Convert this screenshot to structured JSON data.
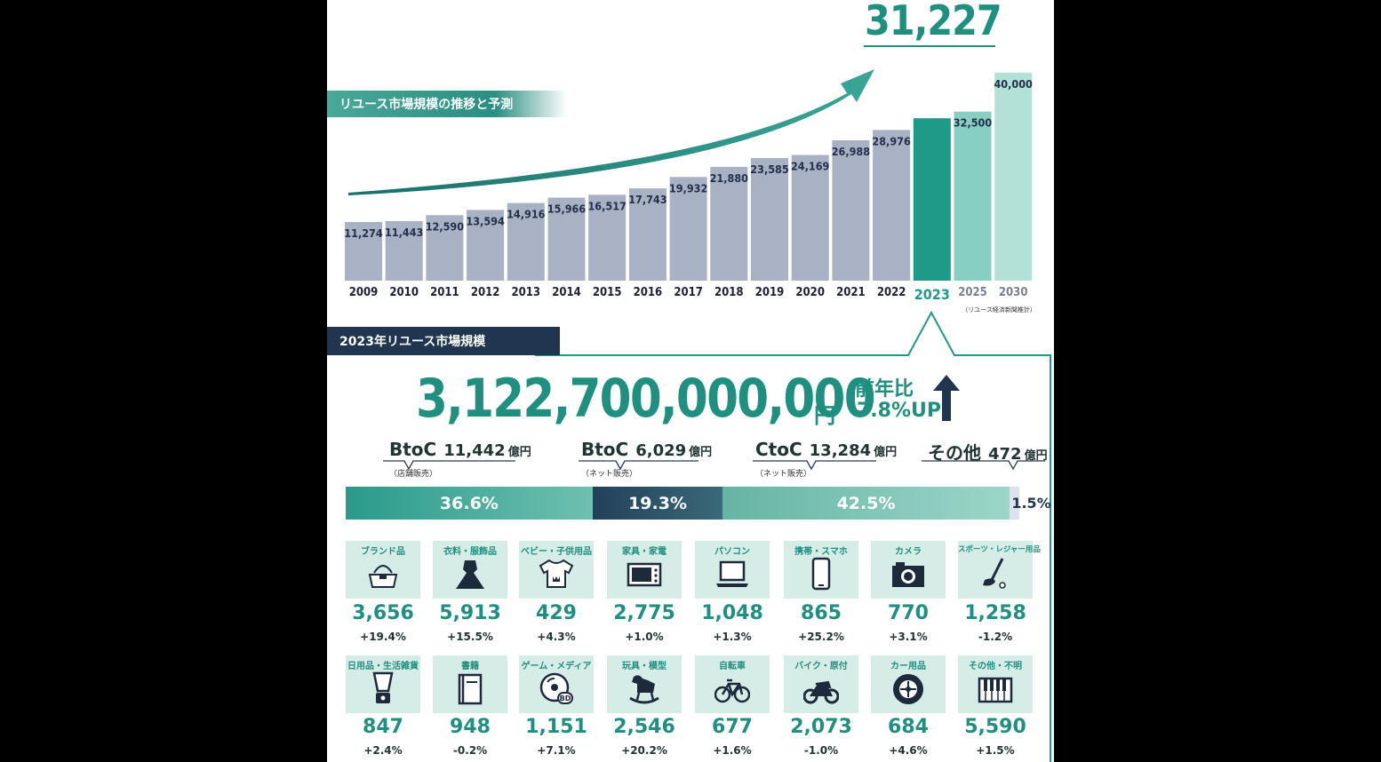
{
  "headline_total": "31,227",
  "trend_title": "リユース市場規模の推移と予測",
  "forecast_note": "（リユース経済新聞推計）",
  "chart_data": {
    "type": "bar",
    "title": "リユース市場規模の推移と予測",
    "categories": [
      "2009",
      "2010",
      "2011",
      "2012",
      "2013",
      "2014",
      "2015",
      "2016",
      "2017",
      "2018",
      "2019",
      "2020",
      "2021",
      "2022",
      "2023",
      "2025",
      "2030"
    ],
    "values": [
      11274,
      11443,
      12590,
      13594,
      14916,
      15966,
      16517,
      17743,
      19932,
      21880,
      23585,
      24169,
      26988,
      28976,
      31227,
      32500,
      40000
    ],
    "labels": [
      "11,274",
      "11,443",
      "12,590",
      "13,594",
      "14,916",
      "15,966",
      "16,517",
      "17,743",
      "19,932",
      "21,880",
      "23,585",
      "24,169",
      "26,988",
      "28,976",
      "",
      "32,500",
      "40,000"
    ],
    "highlight_index": 14,
    "forecast_indices": [
      15,
      16
    ],
    "colors": {
      "past": "#a9b1c5",
      "highlight": "#1f9a88",
      "forecast": "#86cfc2",
      "forecast2030": "#b2e1d8"
    }
  },
  "market2023": {
    "title": "2023年リユース市場規模",
    "amount": "3,122,700,000,000",
    "unit": "円",
    "yoy_label": "前年比",
    "yoy_value": "7.8%UP"
  },
  "segments": [
    {
      "name": "BtoC",
      "value": "11,442",
      "unit": "億円",
      "sub": "（店舗販売）",
      "share": "36.6%",
      "share_value": 36.6,
      "color": "#27998a"
    },
    {
      "name": "BtoC",
      "value": "6,029",
      "unit": "億円",
      "sub": "（ネット販売）",
      "share": "19.3%",
      "share_value": 19.3,
      "color": "#274862"
    },
    {
      "name": "CtoC",
      "value": "13,284",
      "unit": "億円",
      "sub": "（ネット販売）",
      "share": "42.5%",
      "share_value": 42.5,
      "color": "#5fb4a3"
    },
    {
      "name": "その他",
      "value": "472",
      "unit": "億円",
      "sub": "",
      "share": "1.5%",
      "share_value": 1.5,
      "color": "#dde2f0"
    }
  ],
  "categories": [
    {
      "name": "ブランド品",
      "value": "3,656",
      "change": "+19.4%",
      "icon": "handbag-icon"
    },
    {
      "name": "衣料・服飾品",
      "value": "5,913",
      "change": "+15.5%",
      "icon": "dress-icon"
    },
    {
      "name": "ベビー・子供用品",
      "value": "429",
      "change": "+4.3%",
      "icon": "baby-clothes-icon"
    },
    {
      "name": "家具・家電",
      "value": "2,775",
      "change": "+1.0%",
      "icon": "microwave-icon"
    },
    {
      "name": "パソコン",
      "value": "1,048",
      "change": "+1.3%",
      "icon": "laptop-icon"
    },
    {
      "name": "携帯・スマホ",
      "value": "865",
      "change": "+25.2%",
      "icon": "smartphone-icon"
    },
    {
      "name": "カメラ",
      "value": "770",
      "change": "+3.1%",
      "icon": "camera-icon"
    },
    {
      "name": "スポーツ・レジャー用品",
      "value": "1,258",
      "change": "-1.2%",
      "icon": "golf-club-icon"
    },
    {
      "name": "日用品・生活雑貨",
      "value": "847",
      "change": "+2.4%",
      "icon": "blender-icon"
    },
    {
      "name": "書籍",
      "value": "948",
      "change": "-0.2%",
      "icon": "book-icon"
    },
    {
      "name": "ゲーム・メディア",
      "value": "1,151",
      "change": "+7.1%",
      "icon": "disc-icon"
    },
    {
      "name": "玩具・模型",
      "value": "2,546",
      "change": "+20.2%",
      "icon": "rocking-horse-icon"
    },
    {
      "name": "自転車",
      "value": "677",
      "change": "+1.6%",
      "icon": "bicycle-icon"
    },
    {
      "name": "バイク・原付",
      "value": "2,073",
      "change": "-1.0%",
      "icon": "motorcycle-icon"
    },
    {
      "name": "カー用品",
      "value": "684",
      "change": "+4.6%",
      "icon": "tire-icon"
    },
    {
      "name": "その他・不明",
      "value": "5,590",
      "change": "+1.5%",
      "icon": "keyboard-icon"
    }
  ]
}
